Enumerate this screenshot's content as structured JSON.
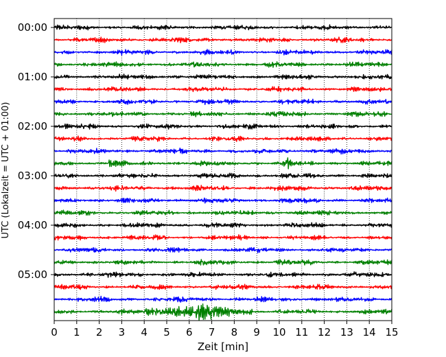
{
  "chart_data": {
    "type": "line",
    "description": "helicorder",
    "xlabel": "Zeit  [min]",
    "ylabel": "UTC (Lokalzeit = UTC + 01:00)",
    "xlim": [
      0,
      15
    ],
    "x_ticks": [
      "0",
      "1",
      "2",
      "3",
      "4",
      "5",
      "6",
      "7",
      "8",
      "9",
      "10",
      "11",
      "12",
      "13",
      "14",
      "15"
    ],
    "y_ticks": [
      "00:00",
      "01:00",
      "02:00",
      "03:00",
      "04:00",
      "05:00"
    ],
    "y_tick_row_indices": [
      0,
      4,
      8,
      12,
      16,
      20
    ],
    "grid": "x-dotted",
    "trace_colors": [
      "#000000",
      "#ff0000",
      "#0000ff",
      "#008000"
    ],
    "trace_interval_min": 15,
    "trace_count": 24,
    "events": [
      {
        "row": 11,
        "start_min": 2.3,
        "end_min": 2.8,
        "amplitude": "medium"
      },
      {
        "row": 11,
        "start_min": 10.2,
        "end_min": 10.6,
        "amplitude": "medium"
      },
      {
        "row": 23,
        "start_min": 4.0,
        "end_min": 8.8,
        "amplitude": "large"
      }
    ]
  }
}
